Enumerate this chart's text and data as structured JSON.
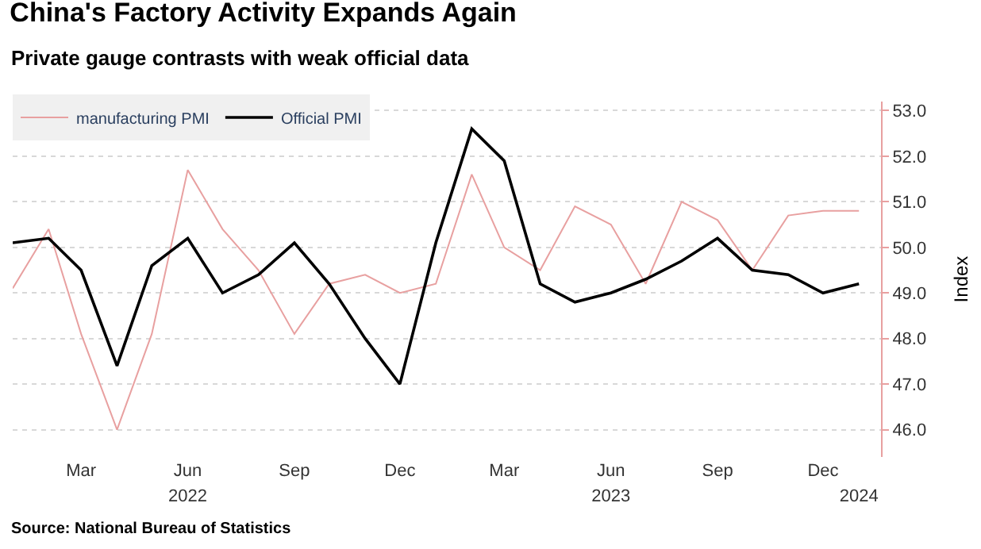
{
  "chart_data": {
    "type": "line",
    "title": "China's Factory Activity Expands Again",
    "subtitle": "Private gauge contrasts with weak official data",
    "ylabel": "Index",
    "x": [
      "2022-01",
      "2022-02",
      "2022-03",
      "2022-04",
      "2022-05",
      "2022-06",
      "2022-07",
      "2022-08",
      "2022-09",
      "2022-10",
      "2022-11",
      "2022-12",
      "2023-01",
      "2023-02",
      "2023-03",
      "2023-04",
      "2023-05",
      "2023-06",
      "2023-07",
      "2023-08",
      "2023-09",
      "2023-10",
      "2023-11",
      "2023-12",
      "2024-01"
    ],
    "series": [
      {
        "name": "manufacturing PMI",
        "color": "#e8a0a0",
        "values": [
          49.1,
          50.4,
          48.1,
          46.0,
          48.1,
          51.7,
          50.4,
          49.5,
          48.1,
          49.2,
          49.4,
          49.0,
          49.2,
          51.6,
          50.0,
          49.5,
          50.9,
          50.5,
          49.2,
          51.0,
          50.6,
          49.5,
          50.7,
          50.8,
          50.8
        ]
      },
      {
        "name": "Official PMI",
        "color": "#000000",
        "values": [
          50.1,
          50.2,
          49.5,
          47.4,
          49.6,
          50.2,
          49.0,
          49.4,
          50.1,
          49.2,
          48.0,
          47.0,
          50.1,
          52.6,
          51.9,
          49.2,
          48.8,
          49.0,
          49.3,
          49.7,
          50.2,
          49.5,
          49.4,
          49.0,
          49.2
        ]
      }
    ],
    "ylim": [
      45.4,
      53.2
    ],
    "yticks": [
      {
        "value": 46,
        "label": "46.0"
      },
      {
        "value": 47,
        "label": "47.0"
      },
      {
        "value": 48,
        "label": "48.0"
      },
      {
        "value": 49,
        "label": "49.0"
      },
      {
        "value": 50,
        "label": "50.0"
      },
      {
        "value": 51,
        "label": "51.0"
      },
      {
        "value": 52,
        "label": "52.0"
      },
      {
        "value": 53,
        "label": "53.0"
      }
    ],
    "xlim": [
      "2022-01-01",
      "2024-01-20"
    ],
    "xticks": [
      {
        "value": "2022-03-01",
        "label": "Mar"
      },
      {
        "value": "2022-06-01",
        "label": "Jun"
      },
      {
        "value": "2022-09-01",
        "label": "Sep"
      },
      {
        "value": "2022-12-01",
        "label": "Dec"
      },
      {
        "value": "2023-03-01",
        "label": "Mar"
      },
      {
        "value": "2023-06-01",
        "label": "Jun"
      },
      {
        "value": "2023-09-01",
        "label": "Sep"
      },
      {
        "value": "2023-12-01",
        "label": "Dec"
      }
    ],
    "x2lim": [
      "2022-01-01",
      "2024-01-20"
    ],
    "x2ticks": [
      {
        "value": "2022-06-01",
        "label": "2022"
      },
      {
        "value": "2023-06-01",
        "label": "2023"
      },
      {
        "value": "2024-01-01",
        "label": "2024"
      }
    ],
    "grid": "y",
    "legend": "top left",
    "marker": "none",
    "line_style": "solid",
    "annotations": [
      "Source: National Bureau of Statistics"
    ]
  }
}
